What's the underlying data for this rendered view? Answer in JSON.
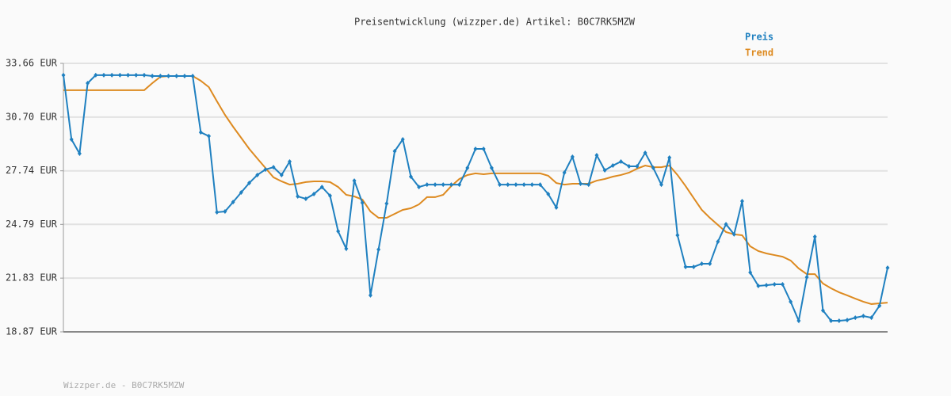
{
  "chart_data": {
    "type": "line",
    "title": "Preisentwicklung (wizzper.de) Artikel: B0C7RK5MZW",
    "footer": "Wizzper.de - B0C7RK5MZW",
    "ylim": [
      18.87,
      33.66
    ],
    "yticks": [
      {
        "value": 18.87,
        "label": "18.87 EUR"
      },
      {
        "value": 21.83,
        "label": "21.83 EUR"
      },
      {
        "value": 24.79,
        "label": "24.79 EUR"
      },
      {
        "value": 27.74,
        "label": "27.74 EUR"
      },
      {
        "value": 30.7,
        "label": "30.70 EUR"
      },
      {
        "value": 33.66,
        "label": "33.66 EUR"
      }
    ],
    "grid": true,
    "legend": "top-right",
    "series": [
      {
        "name": "Preis",
        "color": "#1f80c0",
        "markers": true,
        "values": [
          33.01,
          29.47,
          28.69,
          32.57,
          33.01,
          33.01,
          33.01,
          33.01,
          33.01,
          33.01,
          33.01,
          32.96,
          32.96,
          32.96,
          32.96,
          32.96,
          32.96,
          29.86,
          29.65,
          25.46,
          25.5,
          26.02,
          26.55,
          27.07,
          27.51,
          27.81,
          27.94,
          27.51,
          28.25,
          26.33,
          26.2,
          26.46,
          26.85,
          26.37,
          24.41,
          23.45,
          27.2,
          25.98,
          20.88,
          23.41,
          25.94,
          28.82,
          29.47,
          27.42,
          26.85,
          26.98,
          26.98,
          26.98,
          26.98,
          26.98,
          27.9,
          28.95,
          28.95,
          27.9,
          26.98,
          26.98,
          26.98,
          26.98,
          26.98,
          26.98,
          26.46,
          25.72,
          27.64,
          28.51,
          27.03,
          26.98,
          28.6,
          27.77,
          28.03,
          28.25,
          27.99,
          27.99,
          28.73,
          27.9,
          26.98,
          28.47,
          24.19,
          22.45,
          22.45,
          22.62,
          22.62,
          23.84,
          24.8,
          24.24,
          26.07,
          22.14,
          21.4,
          21.44,
          21.49,
          21.49,
          20.53,
          19.48,
          21.88,
          24.11,
          20.05,
          19.48,
          19.48,
          19.52,
          19.65,
          19.74,
          19.65,
          20.31,
          22.4
        ]
      },
      {
        "name": "Trend",
        "color": "#dd8a20",
        "markers": false,
        "values": [
          32.18,
          32.18,
          32.18,
          32.18,
          32.18,
          32.18,
          32.18,
          32.18,
          32.18,
          32.18,
          32.18,
          32.57,
          32.92,
          32.96,
          32.96,
          32.96,
          32.96,
          32.7,
          32.35,
          31.57,
          30.82,
          30.17,
          29.56,
          28.95,
          28.42,
          27.9,
          27.38,
          27.16,
          26.98,
          27.03,
          27.12,
          27.16,
          27.16,
          27.12,
          26.85,
          26.42,
          26.33,
          26.16,
          25.5,
          25.15,
          25.15,
          25.37,
          25.59,
          25.68,
          25.89,
          26.29,
          26.29,
          26.42,
          26.9,
          27.29,
          27.51,
          27.6,
          27.55,
          27.6,
          27.6,
          27.6,
          27.6,
          27.6,
          27.6,
          27.6,
          27.47,
          27.07,
          26.98,
          27.03,
          27.03,
          27.03,
          27.2,
          27.29,
          27.42,
          27.51,
          27.64,
          27.86,
          28.03,
          27.94,
          27.94,
          28.03,
          27.51,
          26.9,
          26.24,
          25.59,
          25.15,
          24.76,
          24.37,
          24.24,
          24.19,
          23.58,
          23.32,
          23.19,
          23.1,
          23.01,
          22.8,
          22.36,
          22.05,
          22.05,
          21.53,
          21.27,
          21.05,
          20.88,
          20.7,
          20.53,
          20.4,
          20.44,
          20.48
        ]
      }
    ]
  }
}
